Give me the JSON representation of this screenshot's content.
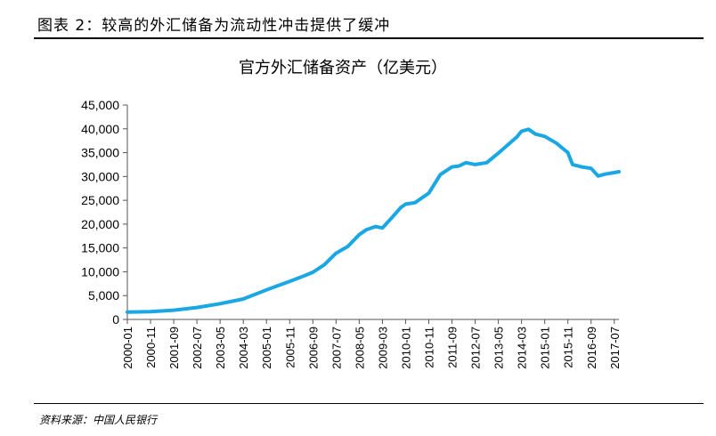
{
  "figure": {
    "caption": "图表 2：较高的外汇储备为流动性冲击提供了缓冲",
    "source": "资料来源：中国人民银行"
  },
  "chart_data": {
    "type": "line",
    "title": "官方外汇储备资产（亿美元）",
    "xlabel": "",
    "ylabel": "",
    "ylim": [
      0,
      45000
    ],
    "yticks": [
      0,
      5000,
      10000,
      15000,
      20000,
      25000,
      30000,
      35000,
      40000,
      45000
    ],
    "ytick_labels": [
      "0",
      "5,000",
      "10,000",
      "15,000",
      "20,000",
      "25,000",
      "30,000",
      "35,000",
      "40,000",
      "45,000"
    ],
    "xrange": [
      "2000-01",
      "2017-09"
    ],
    "xtick_labels": [
      "2000-01",
      "2000-11",
      "2001-09",
      "2002-07",
      "2003-05",
      "2004-03",
      "2005-01",
      "2005-11",
      "2006-09",
      "2007-07",
      "2008-05",
      "2009-03",
      "2010-01",
      "2010-11",
      "2011-09",
      "2012-07",
      "2013-05",
      "2014-03",
      "2015-01",
      "2015-11",
      "2016-09",
      "2017-07"
    ],
    "grid": false,
    "legend": "none",
    "line_color": "#1aa7e3",
    "series": [
      {
        "name": "",
        "x": [
          "2000-01",
          "2000-11",
          "2001-09",
          "2002-07",
          "2003-05",
          "2004-03",
          "2005-01",
          "2005-06",
          "2005-11",
          "2006-04",
          "2006-09",
          "2007-02",
          "2007-07",
          "2007-12",
          "2008-05",
          "2008-08",
          "2008-12",
          "2009-03",
          "2009-07",
          "2009-11",
          "2010-01",
          "2010-05",
          "2010-11",
          "2011-04",
          "2011-09",
          "2011-12",
          "2012-03",
          "2012-07",
          "2012-12",
          "2013-05",
          "2013-09",
          "2014-01",
          "2014-03",
          "2014-06",
          "2014-09",
          "2015-01",
          "2015-06",
          "2015-11",
          "2016-01",
          "2016-05",
          "2016-09",
          "2016-12",
          "2017-03",
          "2017-07",
          "2017-09"
        ],
        "values": [
          1550,
          1650,
          1950,
          2500,
          3300,
          4300,
          6200,
          7100,
          8000,
          8900,
          9900,
          11500,
          13900,
          15300,
          17800,
          18800,
          19500,
          19200,
          21300,
          23500,
          24200,
          24500,
          26500,
          30400,
          32000,
          32200,
          32900,
          32500,
          32900,
          34900,
          36600,
          38300,
          39500,
          39900,
          38900,
          38400,
          37000,
          35000,
          32500,
          32000,
          31700,
          30100,
          30500,
          30800,
          31000
        ]
      }
    ]
  }
}
